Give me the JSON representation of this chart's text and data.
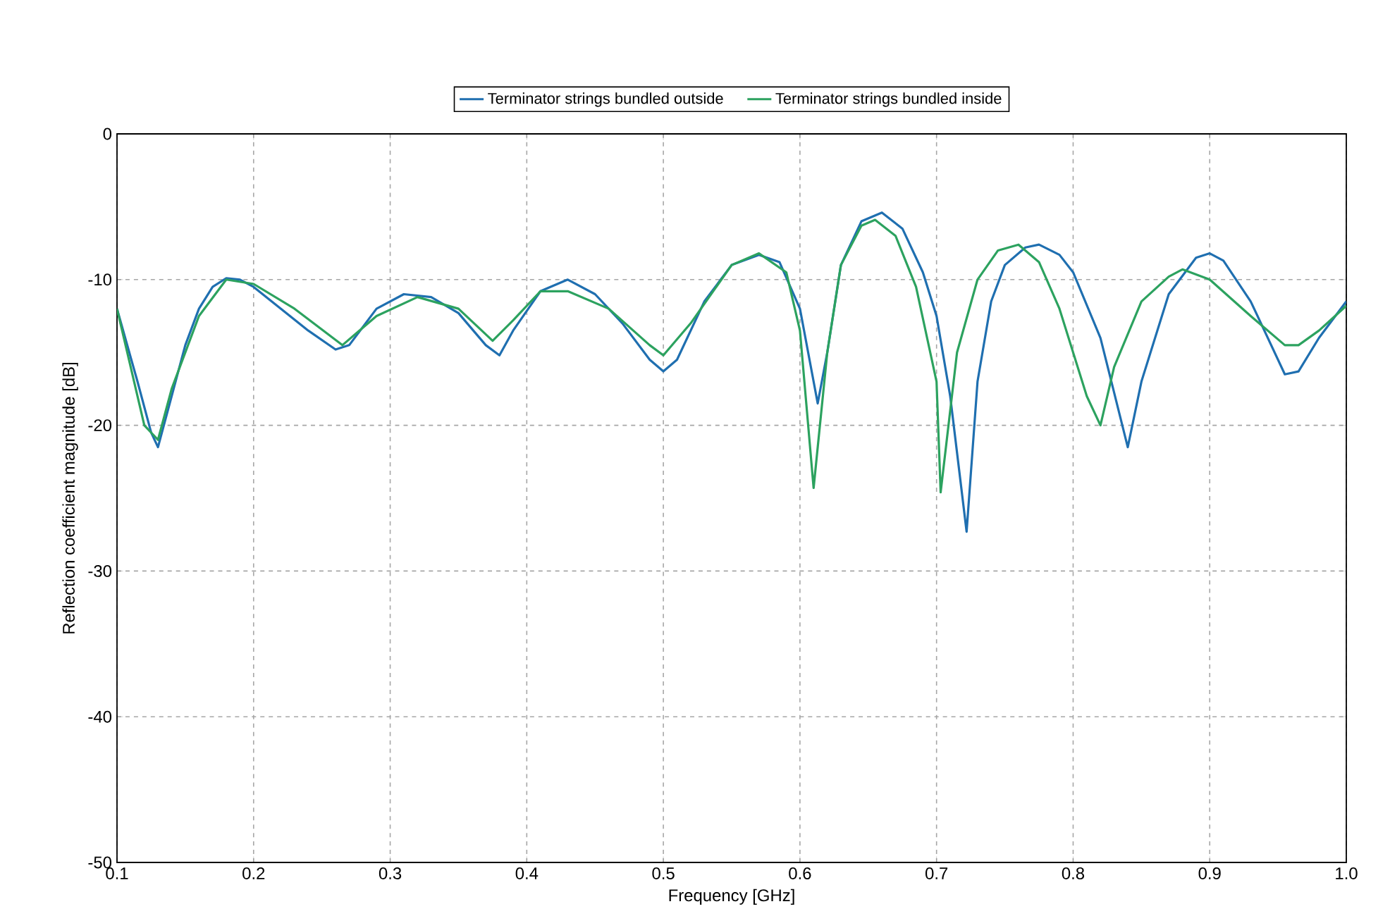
{
  "chart_data": {
    "type": "line",
    "xlabel": "Frequency [GHz]",
    "ylabel": "Reflection coefficient magnitude [dB]",
    "xlim": [
      0.1,
      1.0
    ],
    "ylim": [
      -50,
      0
    ],
    "xticks": [
      {
        "value": 0.1,
        "label": "0.1"
      },
      {
        "value": 0.2,
        "label": "0.2"
      },
      {
        "value": 0.3,
        "label": "0.3"
      },
      {
        "value": 0.4,
        "label": "0.4"
      },
      {
        "value": 0.5,
        "label": "0.5"
      },
      {
        "value": 0.6,
        "label": "0.6"
      },
      {
        "value": 0.7,
        "label": "0.7"
      },
      {
        "value": 0.8,
        "label": "0.8"
      },
      {
        "value": 0.9,
        "label": "0.9"
      },
      {
        "value": 1.0,
        "label": "1.0"
      }
    ],
    "yticks": [
      -50,
      -40,
      -30,
      -20,
      -10,
      0
    ],
    "grid": true,
    "legend": "top",
    "line_style": "solid",
    "series": [
      {
        "name": "Terminator strings bundled outside",
        "color": "#1f6fb0",
        "x": [
          0.1,
          0.115,
          0.125,
          0.13,
          0.14,
          0.15,
          0.16,
          0.17,
          0.18,
          0.19,
          0.2,
          0.22,
          0.24,
          0.26,
          0.27,
          0.29,
          0.31,
          0.33,
          0.35,
          0.37,
          0.38,
          0.39,
          0.41,
          0.43,
          0.45,
          0.47,
          0.49,
          0.5,
          0.51,
          0.53,
          0.55,
          0.57,
          0.585,
          0.6,
          0.613,
          0.62,
          0.63,
          0.645,
          0.66,
          0.675,
          0.69,
          0.7,
          0.71,
          0.722,
          0.73,
          0.74,
          0.75,
          0.765,
          0.775,
          0.79,
          0.8,
          0.82,
          0.84,
          0.85,
          0.87,
          0.89,
          0.9,
          0.91,
          0.93,
          0.955,
          0.965,
          0.98,
          1.0
        ],
        "values": [
          -12,
          -17,
          -20.5,
          -21.5,
          -18,
          -14.5,
          -12,
          -10.5,
          -9.9,
          -10,
          -10.5,
          -12,
          -13.5,
          -14.8,
          -14.5,
          -12,
          -11,
          -11.2,
          -12.3,
          -14.5,
          -15.2,
          -13.5,
          -10.8,
          -10,
          -11,
          -13,
          -15.5,
          -16.3,
          -15.5,
          -11.5,
          -9,
          -8.3,
          -8.8,
          -12,
          -18.5,
          -15,
          -9,
          -6,
          -5.4,
          -6.5,
          -9.5,
          -12.5,
          -18,
          -27.3,
          -17,
          -11.5,
          -9,
          -7.8,
          -7.6,
          -8.3,
          -9.5,
          -14,
          -21.5,
          -17,
          -11,
          -8.5,
          -8.2,
          -8.7,
          -11.5,
          -16.5,
          -16.3,
          -14,
          -11.5
        ]
      },
      {
        "name": "Terminator strings bundled inside",
        "color": "#2ca25f",
        "x": [
          0.1,
          0.12,
          0.13,
          0.14,
          0.16,
          0.18,
          0.2,
          0.23,
          0.265,
          0.29,
          0.32,
          0.35,
          0.375,
          0.39,
          0.41,
          0.43,
          0.46,
          0.49,
          0.5,
          0.52,
          0.55,
          0.57,
          0.59,
          0.6,
          0.61,
          0.62,
          0.63,
          0.645,
          0.655,
          0.67,
          0.685,
          0.7,
          0.703,
          0.715,
          0.73,
          0.745,
          0.76,
          0.775,
          0.79,
          0.81,
          0.82,
          0.83,
          0.85,
          0.87,
          0.88,
          0.9,
          0.93,
          0.955,
          0.965,
          0.98,
          1.0
        ],
        "values": [
          -12,
          -20,
          -21,
          -17.5,
          -12.5,
          -10,
          -10.3,
          -12,
          -14.5,
          -12.5,
          -11.2,
          -12,
          -14.2,
          -12.8,
          -10.8,
          -10.8,
          -12,
          -14.5,
          -15.2,
          -13,
          -9,
          -8.2,
          -9.5,
          -13.5,
          -24.3,
          -15,
          -9,
          -6.3,
          -5.9,
          -7,
          -10.5,
          -17,
          -24.6,
          -15,
          -10,
          -8,
          -7.6,
          -8.8,
          -12,
          -18,
          -20,
          -16,
          -11.5,
          -9.8,
          -9.3,
          -10,
          -12.5,
          -14.5,
          -14.5,
          -13.5,
          -11.8
        ]
      }
    ]
  }
}
